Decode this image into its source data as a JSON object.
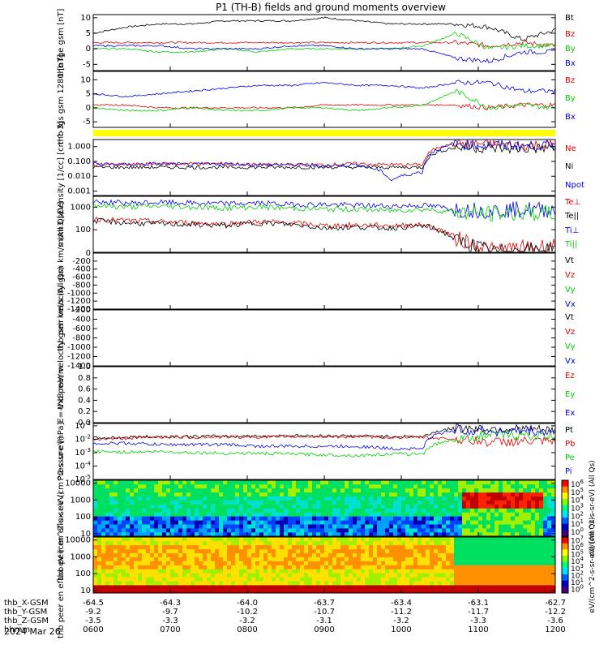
{
  "title": "P1  (TH-B) fields and ground moments overview",
  "date_label": "2024 Mar 26",
  "colors": {
    "black": "#000000",
    "red": "#e00000",
    "green": "#00d000",
    "blue": "#0000e0",
    "yellow": "#ffff00"
  },
  "colorbars": [
    {
      "id": "pe",
      "label": "eV/(cm^2-s-sr-eV) (All Qs)",
      "ticks": [
        "10^6",
        "10^5",
        "10^4",
        "10^3",
        "10^2",
        "10^1",
        "10^0"
      ]
    },
    {
      "id": "ee",
      "label": "eV/(cm^2-s-sr-eV) (All Qs)",
      "ticks": [
        "10^7",
        "10^6",
        "10^5",
        "10^4",
        "10^3",
        "10^2",
        "10^1",
        "10^0"
      ]
    }
  ],
  "xaxis": {
    "rows": [
      {
        "label": "thb_X-GSM",
        "values": [
          "-64.5",
          "-64.3",
          "-64.0",
          "-63.7",
          "-63.4",
          "-63.1",
          "-62.7"
        ]
      },
      {
        "label": "thb_Y-GSM",
        "values": [
          "-9.2",
          "-9.7",
          "-10.2",
          "-10.7",
          "-11.2",
          "-11.7",
          "-12.2"
        ]
      },
      {
        "label": "thb_Z-GSM",
        "values": [
          "-3.5",
          "-3.3",
          "-3.2",
          "-3.1",
          "-3.2",
          "-3.3",
          "-3.6"
        ]
      },
      {
        "label": "hhmm",
        "values": [
          "0600",
          "0700",
          "0800",
          "0900",
          "1000",
          "1100",
          "1200"
        ]
      }
    ]
  },
  "chart_data": [
    {
      "type": "line",
      "id": "fge",
      "ylabel": "thb fge gsm [nT]",
      "yticks": [
        10,
        5,
        0,
        -5
      ],
      "ylim": [
        -7,
        11
      ],
      "series": [
        {
          "name": "Bt",
          "color": "black",
          "values": [
            5,
            7,
            8,
            8,
            9,
            9,
            9,
            10,
            9,
            8,
            8,
            8,
            7,
            3,
            6
          ]
        },
        {
          "name": "Bz",
          "color": "red",
          "values": [
            2,
            2,
            2,
            2,
            2,
            2,
            2,
            2,
            2,
            2,
            2,
            2,
            1,
            2,
            1
          ]
        },
        {
          "name": "By",
          "color": "green",
          "values": [
            0,
            0,
            -1,
            -1,
            0,
            -1,
            0,
            0,
            0,
            0,
            1,
            5,
            0,
            1,
            1
          ]
        },
        {
          "name": "Bx",
          "color": "blue",
          "values": [
            1,
            1,
            1,
            0,
            0,
            0,
            1,
            1,
            0,
            0,
            0,
            -3,
            -4,
            -1,
            -1
          ]
        }
      ]
    },
    {
      "type": "line",
      "id": "fgs",
      "ylabel": "thb fgs gsm 1280 [nT]",
      "yticks": [
        10,
        5,
        0,
        -5
      ],
      "ylim": [
        -7,
        13
      ],
      "series": [
        {
          "name": "Bz",
          "color": "red",
          "values": [
            1,
            1,
            0,
            0,
            0,
            0,
            0,
            1,
            1,
            1,
            1,
            1,
            0,
            1,
            1
          ]
        },
        {
          "name": "By",
          "color": "green",
          "values": [
            0,
            -1,
            -1,
            0,
            -1,
            -1,
            0,
            0,
            -1,
            0,
            1,
            6,
            0,
            1,
            0
          ]
        },
        {
          "name": "Bx",
          "color": "blue",
          "values": [
            5,
            4,
            5,
            6,
            7,
            8,
            8,
            9,
            8,
            8,
            7,
            9,
            9,
            6,
            6
          ]
        }
      ]
    },
    {
      "type": "line",
      "id": "density",
      "ylabel": "Density [1/cc] [cm^-3]",
      "yscale": "log",
      "yticks": [
        "1.000",
        "0.100",
        "0.010",
        "0.001"
      ],
      "ylim": [
        0.0005,
        3
      ],
      "series": [
        {
          "name": "Ne",
          "color": "red",
          "values": [
            0.06,
            0.06,
            0.07,
            0.07,
            0.07,
            0.06,
            0.06,
            0.06,
            0.07,
            0.06,
            0.06,
            1.8,
            1.5,
            1.2,
            1.4
          ]
        },
        {
          "name": "Ni",
          "color": "black",
          "values": [
            0.04,
            0.04,
            0.04,
            0.04,
            0.04,
            0.04,
            0.04,
            0.04,
            0.04,
            0.04,
            0.04,
            0.9,
            0.8,
            0.7,
            0.8
          ]
        },
        {
          "name": "Npot",
          "color": "blue",
          "values": [
            0.07,
            0.06,
            0.07,
            0.06,
            0.07,
            0.06,
            0.06,
            0.05,
            0.06,
            0.005,
            0.02,
            1.5,
            1.3,
            1.1,
            1.2
          ]
        }
      ]
    },
    {
      "type": "line",
      "id": "temp",
      "ylabel": "mom3 [eV]",
      "yscale": "log",
      "yticks": [
        "1000",
        "100"
      ],
      "ylim": [
        10,
        3000
      ],
      "series": [
        {
          "name": "Te⊥",
          "color": "red",
          "values": [
            300,
            250,
            230,
            200,
            180,
            230,
            200,
            150,
            160,
            150,
            160,
            40,
            12,
            15,
            20
          ]
        },
        {
          "name": "Te||",
          "color": "black",
          "values": [
            250,
            200,
            180,
            170,
            150,
            200,
            170,
            120,
            130,
            120,
            150,
            30,
            10,
            12,
            15
          ]
        },
        {
          "name": "Ti⊥",
          "color": "blue",
          "values": [
            1700,
            1500,
            1600,
            1500,
            1400,
            1500,
            1300,
            1300,
            1200,
            1100,
            1200,
            800,
            700,
            800,
            750
          ]
        },
        {
          "name": "Ti||",
          "color": "green",
          "values": [
            1200,
            1000,
            1100,
            1000,
            900,
            1000,
            900,
            800,
            800,
            700,
            800,
            600,
            500,
            550,
            520
          ]
        }
      ]
    },
    {
      "type": "line",
      "id": "vi",
      "ylabel": "thb peir velocity gsm km/s (All Qs)",
      "yticks": [
        0,
        -200,
        -400,
        -600,
        -800,
        -1000,
        -1200,
        -1400
      ],
      "ylim": [
        -1400,
        0
      ],
      "series": [
        {
          "name": "Vt",
          "color": "black",
          "values": []
        },
        {
          "name": "Vz",
          "color": "red",
          "values": []
        },
        {
          "name": "Vy",
          "color": "green",
          "values": []
        },
        {
          "name": "Vx",
          "color": "blue",
          "values": []
        }
      ]
    },
    {
      "type": "line",
      "id": "ve",
      "ylabel": "thb peer velocity gsm km/s (All Qs)",
      "yticks": [
        -200,
        -400,
        -600,
        -800,
        -1000,
        -1200,
        -1400
      ],
      "ylim": [
        -1400,
        -200
      ],
      "series": [
        {
          "name": "Vt",
          "color": "black",
          "values": []
        },
        {
          "name": "Vz",
          "color": "red",
          "values": []
        },
        {
          "name": "Vy",
          "color": "green",
          "values": []
        },
        {
          "name": "Vx",
          "color": "blue",
          "values": []
        }
      ]
    },
    {
      "type": "line",
      "id": "ef",
      "ylabel": "E=-VxB mV/m",
      "yticks": [
        "1.0",
        "0.8",
        "0.6",
        "0.4",
        "0.2",
        "0.0"
      ],
      "ylim": [
        0,
        1
      ],
      "series": [
        {
          "name": "Ez",
          "color": "red",
          "values": []
        },
        {
          "name": "Ey",
          "color": "green",
          "values": []
        },
        {
          "name": "Ex",
          "color": "blue",
          "values": []
        }
      ]
    },
    {
      "type": "line",
      "id": "press",
      "ylabel": "Pressure [nPa]",
      "yscale": "log",
      "yticks": [
        "10^-1",
        "10^-2",
        "10^-3",
        "10^-4",
        "10^-5"
      ],
      "ylim": [
        1e-05,
        0.15
      ],
      "series": [
        {
          "name": "Pt",
          "color": "black",
          "values": [
            0.012,
            0.014,
            0.016,
            0.016,
            0.017,
            0.017,
            0.018,
            0.018,
            0.017,
            0.016,
            0.015,
            0.07,
            0.06,
            0.06,
            0.04
          ]
        },
        {
          "name": "Pb",
          "color": "red",
          "values": [
            0.01,
            0.012,
            0.015,
            0.014,
            0.015,
            0.015,
            0.016,
            0.016,
            0.015,
            0.014,
            0.014,
            0.01,
            0.006,
            0.007,
            0.006
          ]
        },
        {
          "name": "Pe",
          "color": "green",
          "values": [
            0.0012,
            0.0011,
            0.0012,
            0.001,
            0.0009,
            0.0009,
            0.0008,
            0.0007,
            0.0006,
            0.0008,
            0.0008,
            0.01,
            0.02,
            0.02,
            0.015
          ]
        },
        {
          "name": "Pi",
          "color": "blue",
          "values": [
            0.005,
            0.005,
            0.004,
            0.004,
            0.004,
            0.003,
            0.003,
            0.003,
            0.003,
            0.002,
            0.002,
            0.05,
            0.04,
            0.04,
            0.03
          ]
        }
      ]
    },
    {
      "type": "heatmap",
      "id": "pe",
      "ylabel": "thb peir en eflux eV (cm^2-s-sr-eV)",
      "yscale": "log",
      "yticks": [
        "10000",
        "1000",
        "100",
        "10"
      ],
      "ylim": [
        7,
        15000
      ]
    },
    {
      "type": "heatmap",
      "id": "ee",
      "ylabel": "thb peer en eflux eV (cm^2-s-sr-eV)",
      "yscale": "log",
      "yticks": [
        "10000",
        "1000",
        "100",
        "10"
      ],
      "ylim": [
        7,
        15000
      ]
    }
  ]
}
